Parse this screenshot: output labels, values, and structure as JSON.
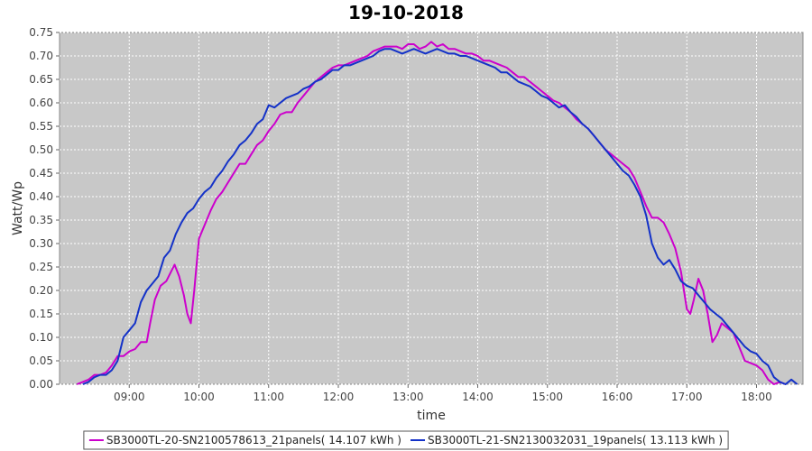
{
  "chart_data": {
    "type": "line",
    "title": "19-10-2018",
    "xlabel": "time",
    "ylabel": "Watt/Wp",
    "xlim": [
      "08:00",
      "18:40"
    ],
    "ylim": [
      0.0,
      0.75
    ],
    "x_ticks": [
      "09:00",
      "10:00",
      "11:00",
      "12:00",
      "13:00",
      "14:00",
      "15:00",
      "16:00",
      "17:00",
      "18:00"
    ],
    "y_ticks": [
      "0.00",
      "0.05",
      "0.10",
      "0.15",
      "0.20",
      "0.25",
      "0.30",
      "0.35",
      "0.40",
      "0.45",
      "0.50",
      "0.55",
      "0.60",
      "0.65",
      "0.70",
      "0.75"
    ],
    "grid": true,
    "legend_position": "bottom",
    "plot_background": "#c8c8c8",
    "series": [
      {
        "name": "SB3000TL-20-SN2100578613_21panels( 14.107 kWh )",
        "color": "#cc00cc",
        "points": [
          [
            "08:15",
            0.0
          ],
          [
            "08:20",
            0.005
          ],
          [
            "08:25",
            0.01
          ],
          [
            "08:30",
            0.02
          ],
          [
            "08:35",
            0.02
          ],
          [
            "08:40",
            0.025
          ],
          [
            "08:45",
            0.04
          ],
          [
            "08:50",
            0.06
          ],
          [
            "08:55",
            0.06
          ],
          [
            "09:00",
            0.07
          ],
          [
            "09:05",
            0.075
          ],
          [
            "09:10",
            0.09
          ],
          [
            "09:15",
            0.09
          ],
          [
            "09:18",
            0.13
          ],
          [
            "09:22",
            0.18
          ],
          [
            "09:27",
            0.21
          ],
          [
            "09:32",
            0.22
          ],
          [
            "09:36",
            0.24
          ],
          [
            "09:39",
            0.255
          ],
          [
            "09:43",
            0.23
          ],
          [
            "09:47",
            0.19
          ],
          [
            "09:50",
            0.15
          ],
          [
            "09:53",
            0.13
          ],
          [
            "09:56",
            0.2
          ],
          [
            "10:00",
            0.31
          ],
          [
            "10:05",
            0.34
          ],
          [
            "10:10",
            0.37
          ],
          [
            "10:15",
            0.395
          ],
          [
            "10:20",
            0.41
          ],
          [
            "10:25",
            0.43
          ],
          [
            "10:30",
            0.45
          ],
          [
            "10:35",
            0.47
          ],
          [
            "10:40",
            0.47
          ],
          [
            "10:45",
            0.49
          ],
          [
            "10:50",
            0.51
          ],
          [
            "10:55",
            0.52
          ],
          [
            "11:00",
            0.54
          ],
          [
            "11:05",
            0.555
          ],
          [
            "11:10",
            0.575
          ],
          [
            "11:15",
            0.58
          ],
          [
            "11:20",
            0.58
          ],
          [
            "11:25",
            0.6
          ],
          [
            "11:30",
            0.615
          ],
          [
            "11:35",
            0.63
          ],
          [
            "11:40",
            0.645
          ],
          [
            "11:45",
            0.655
          ],
          [
            "11:50",
            0.665
          ],
          [
            "11:55",
            0.675
          ],
          [
            "12:00",
            0.68
          ],
          [
            "12:05",
            0.68
          ],
          [
            "12:10",
            0.685
          ],
          [
            "12:15",
            0.69
          ],
          [
            "12:20",
            0.695
          ],
          [
            "12:25",
            0.7
          ],
          [
            "12:30",
            0.71
          ],
          [
            "12:35",
            0.715
          ],
          [
            "12:40",
            0.72
          ],
          [
            "12:45",
            0.72
          ],
          [
            "12:50",
            0.72
          ],
          [
            "12:55",
            0.715
          ],
          [
            "13:00",
            0.725
          ],
          [
            "13:05",
            0.725
          ],
          [
            "13:10",
            0.715
          ],
          [
            "13:15",
            0.72
          ],
          [
            "13:20",
            0.73
          ],
          [
            "13:25",
            0.72
          ],
          [
            "13:30",
            0.725
          ],
          [
            "13:35",
            0.715
          ],
          [
            "13:40",
            0.715
          ],
          [
            "13:45",
            0.71
          ],
          [
            "13:50",
            0.705
          ],
          [
            "13:55",
            0.705
          ],
          [
            "14:00",
            0.7
          ],
          [
            "14:05",
            0.69
          ],
          [
            "14:10",
            0.69
          ],
          [
            "14:15",
            0.685
          ],
          [
            "14:20",
            0.68
          ],
          [
            "14:25",
            0.675
          ],
          [
            "14:30",
            0.665
          ],
          [
            "14:35",
            0.655
          ],
          [
            "14:40",
            0.655
          ],
          [
            "14:45",
            0.645
          ],
          [
            "14:50",
            0.635
          ],
          [
            "14:55",
            0.625
          ],
          [
            "15:00",
            0.615
          ],
          [
            "15:05",
            0.605
          ],
          [
            "15:10",
            0.6
          ],
          [
            "15:15",
            0.59
          ],
          [
            "15:20",
            0.58
          ],
          [
            "15:25",
            0.565
          ],
          [
            "15:30",
            0.555
          ],
          [
            "15:35",
            0.545
          ],
          [
            "15:40",
            0.53
          ],
          [
            "15:45",
            0.515
          ],
          [
            "15:50",
            0.5
          ],
          [
            "15:55",
            0.49
          ],
          [
            "16:00",
            0.48
          ],
          [
            "16:05",
            0.47
          ],
          [
            "16:10",
            0.46
          ],
          [
            "16:15",
            0.44
          ],
          [
            "16:20",
            0.41
          ],
          [
            "16:25",
            0.38
          ],
          [
            "16:30",
            0.355
          ],
          [
            "16:35",
            0.355
          ],
          [
            "16:40",
            0.345
          ],
          [
            "16:45",
            0.32
          ],
          [
            "16:50",
            0.29
          ],
          [
            "16:55",
            0.24
          ],
          [
            "17:00",
            0.16
          ],
          [
            "17:03",
            0.15
          ],
          [
            "17:06",
            0.18
          ],
          [
            "17:10",
            0.225
          ],
          [
            "17:14",
            0.2
          ],
          [
            "17:18",
            0.15
          ],
          [
            "17:22",
            0.09
          ],
          [
            "17:26",
            0.105
          ],
          [
            "17:30",
            0.13
          ],
          [
            "17:35",
            0.12
          ],
          [
            "17:40",
            0.11
          ],
          [
            "17:45",
            0.08
          ],
          [
            "17:50",
            0.05
          ],
          [
            "17:55",
            0.045
          ],
          [
            "18:00",
            0.04
          ],
          [
            "18:05",
            0.03
          ],
          [
            "18:10",
            0.01
          ],
          [
            "18:15",
            0.0
          ],
          [
            "18:20",
            0.005
          ],
          [
            "18:25",
            0.0
          ]
        ]
      },
      {
        "name": "SB3000TL-21-SN2130032031_19panels( 13.113 kWh )",
        "color": "#1432c8",
        "points": [
          [
            "08:20",
            0.0
          ],
          [
            "08:25",
            0.005
          ],
          [
            "08:30",
            0.015
          ],
          [
            "08:35",
            0.02
          ],
          [
            "08:40",
            0.02
          ],
          [
            "08:45",
            0.03
          ],
          [
            "08:50",
            0.05
          ],
          [
            "08:55",
            0.1
          ],
          [
            "09:00",
            0.115
          ],
          [
            "09:05",
            0.13
          ],
          [
            "09:10",
            0.175
          ],
          [
            "09:15",
            0.2
          ],
          [
            "09:20",
            0.215
          ],
          [
            "09:25",
            0.23
          ],
          [
            "09:30",
            0.27
          ],
          [
            "09:35",
            0.285
          ],
          [
            "09:40",
            0.32
          ],
          [
            "09:45",
            0.345
          ],
          [
            "09:50",
            0.365
          ],
          [
            "09:55",
            0.375
          ],
          [
            "10:00",
            0.395
          ],
          [
            "10:05",
            0.41
          ],
          [
            "10:10",
            0.42
          ],
          [
            "10:15",
            0.44
          ],
          [
            "10:20",
            0.455
          ],
          [
            "10:25",
            0.475
          ],
          [
            "10:30",
            0.49
          ],
          [
            "10:35",
            0.51
          ],
          [
            "10:40",
            0.52
          ],
          [
            "10:45",
            0.535
          ],
          [
            "10:50",
            0.555
          ],
          [
            "10:55",
            0.565
          ],
          [
            "11:00",
            0.595
          ],
          [
            "11:05",
            0.59
          ],
          [
            "11:10",
            0.6
          ],
          [
            "11:15",
            0.61
          ],
          [
            "11:20",
            0.615
          ],
          [
            "11:25",
            0.62
          ],
          [
            "11:30",
            0.63
          ],
          [
            "11:35",
            0.635
          ],
          [
            "11:40",
            0.645
          ],
          [
            "11:45",
            0.65
          ],
          [
            "11:50",
            0.66
          ],
          [
            "11:55",
            0.67
          ],
          [
            "12:00",
            0.67
          ],
          [
            "12:05",
            0.68
          ],
          [
            "12:10",
            0.68
          ],
          [
            "12:15",
            0.685
          ],
          [
            "12:20",
            0.69
          ],
          [
            "12:25",
            0.695
          ],
          [
            "12:30",
            0.7
          ],
          [
            "12:35",
            0.71
          ],
          [
            "12:40",
            0.715
          ],
          [
            "12:45",
            0.715
          ],
          [
            "12:50",
            0.71
          ],
          [
            "12:55",
            0.705
          ],
          [
            "13:00",
            0.71
          ],
          [
            "13:05",
            0.715
          ],
          [
            "13:10",
            0.71
          ],
          [
            "13:15",
            0.705
          ],
          [
            "13:20",
            0.71
          ],
          [
            "13:25",
            0.715
          ],
          [
            "13:30",
            0.71
          ],
          [
            "13:35",
            0.705
          ],
          [
            "13:40",
            0.705
          ],
          [
            "13:45",
            0.7
          ],
          [
            "13:50",
            0.7
          ],
          [
            "13:55",
            0.695
          ],
          [
            "14:00",
            0.69
          ],
          [
            "14:05",
            0.685
          ],
          [
            "14:10",
            0.68
          ],
          [
            "14:15",
            0.675
          ],
          [
            "14:20",
            0.665
          ],
          [
            "14:25",
            0.665
          ],
          [
            "14:30",
            0.655
          ],
          [
            "14:35",
            0.645
          ],
          [
            "14:40",
            0.64
          ],
          [
            "14:45",
            0.635
          ],
          [
            "14:50",
            0.625
          ],
          [
            "14:55",
            0.615
          ],
          [
            "15:00",
            0.61
          ],
          [
            "15:05",
            0.6
          ],
          [
            "15:10",
            0.59
          ],
          [
            "15:15",
            0.595
          ],
          [
            "15:20",
            0.58
          ],
          [
            "15:25",
            0.57
          ],
          [
            "15:30",
            0.555
          ],
          [
            "15:35",
            0.545
          ],
          [
            "15:40",
            0.53
          ],
          [
            "15:45",
            0.515
          ],
          [
            "15:50",
            0.5
          ],
          [
            "15:55",
            0.485
          ],
          [
            "16:00",
            0.47
          ],
          [
            "16:05",
            0.455
          ],
          [
            "16:10",
            0.445
          ],
          [
            "16:15",
            0.425
          ],
          [
            "16:20",
            0.4
          ],
          [
            "16:25",
            0.36
          ],
          [
            "16:30",
            0.3
          ],
          [
            "16:35",
            0.27
          ],
          [
            "16:40",
            0.255
          ],
          [
            "16:45",
            0.265
          ],
          [
            "16:50",
            0.245
          ],
          [
            "16:55",
            0.22
          ],
          [
            "17:00",
            0.21
          ],
          [
            "17:05",
            0.205
          ],
          [
            "17:10",
            0.19
          ],
          [
            "17:15",
            0.175
          ],
          [
            "17:20",
            0.16
          ],
          [
            "17:25",
            0.15
          ],
          [
            "17:30",
            0.14
          ],
          [
            "17:35",
            0.125
          ],
          [
            "17:40",
            0.11
          ],
          [
            "17:45",
            0.095
          ],
          [
            "17:50",
            0.08
          ],
          [
            "17:55",
            0.07
          ],
          [
            "18:00",
            0.065
          ],
          [
            "18:05",
            0.05
          ],
          [
            "18:10",
            0.04
          ],
          [
            "18:15",
            0.015
          ],
          [
            "18:20",
            0.005
          ],
          [
            "18:25",
            0.0
          ],
          [
            "18:30",
            0.01
          ],
          [
            "18:35",
            0.0
          ]
        ]
      }
    ]
  }
}
